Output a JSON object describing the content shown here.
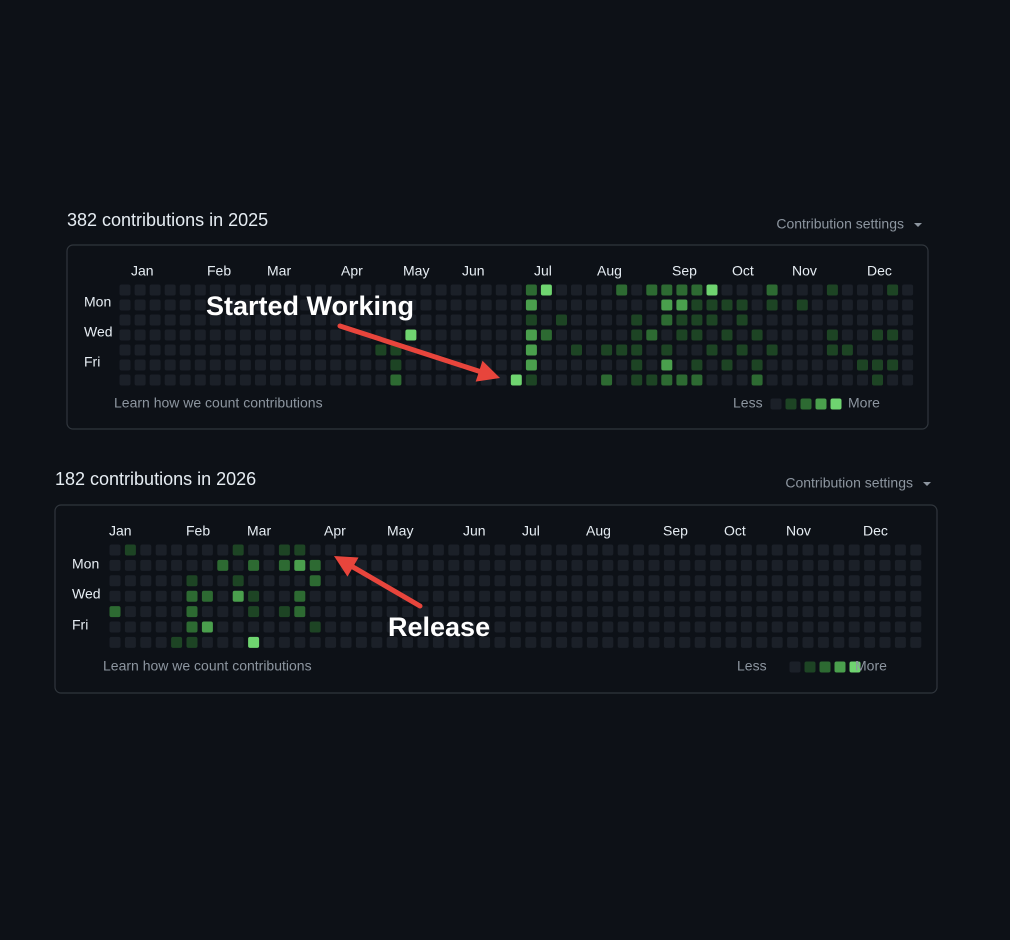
{
  "palette": [
    "#1b2028",
    "#1d4424",
    "#2d6a32",
    "#4a9f4d",
    "#6fd470"
  ],
  "panels": [
    {
      "title": "382 contributions in 2025",
      "settings": "Contribution settings",
      "months": [
        "Jan",
        "Feb",
        "Mar",
        "Apr",
        "May",
        "Jun",
        "Jul",
        "Aug",
        "Sep",
        "Oct",
        "Nov",
        "Dec"
      ],
      "days": [
        "Mon",
        "Wed",
        "Fri"
      ],
      "grid": [
        [
          0,
          0,
          0,
          0,
          0,
          0,
          0,
          0,
          0,
          0,
          0,
          0,
          0,
          0,
          0,
          0,
          0,
          0,
          0,
          0,
          0,
          0,
          0,
          0,
          0,
          0,
          0,
          2,
          4,
          0,
          0,
          0,
          0,
          2,
          0,
          2,
          2,
          2,
          2,
          4,
          0,
          0,
          0,
          2,
          0,
          0,
          0,
          1,
          0,
          0,
          0,
          1,
          0
        ],
        [
          0,
          0,
          0,
          0,
          0,
          0,
          0,
          0,
          0,
          0,
          0,
          0,
          0,
          0,
          0,
          0,
          0,
          0,
          0,
          0,
          0,
          0,
          0,
          0,
          0,
          0,
          0,
          3,
          0,
          0,
          0,
          0,
          0,
          0,
          0,
          0,
          3,
          3,
          1,
          1,
          1,
          1,
          0,
          1,
          0,
          1,
          0,
          0,
          0,
          0,
          0,
          0,
          0
        ],
        [
          0,
          0,
          0,
          0,
          0,
          0,
          0,
          0,
          0,
          0,
          0,
          0,
          0,
          0,
          0,
          0,
          0,
          0,
          0,
          0,
          0,
          0,
          0,
          0,
          0,
          0,
          0,
          1,
          0,
          1,
          0,
          0,
          0,
          0,
          1,
          0,
          2,
          1,
          1,
          1,
          0,
          1,
          0,
          0,
          0,
          0,
          0,
          0,
          0,
          0,
          0,
          0,
          0
        ],
        [
          0,
          0,
          0,
          0,
          0,
          0,
          0,
          0,
          0,
          0,
          0,
          0,
          0,
          0,
          0,
          0,
          0,
          0,
          0,
          4,
          0,
          0,
          0,
          0,
          0,
          0,
          0,
          3,
          2,
          0,
          0,
          0,
          0,
          0,
          1,
          2,
          0,
          1,
          1,
          0,
          1,
          0,
          1,
          0,
          0,
          0,
          0,
          1,
          0,
          0,
          1,
          1,
          0
        ],
        [
          0,
          0,
          0,
          0,
          0,
          0,
          0,
          0,
          0,
          0,
          0,
          0,
          0,
          0,
          0,
          0,
          0,
          1,
          1,
          0,
          0,
          0,
          0,
          0,
          0,
          0,
          0,
          3,
          0,
          0,
          1,
          0,
          1,
          1,
          1,
          0,
          1,
          0,
          0,
          1,
          0,
          1,
          0,
          1,
          0,
          0,
          0,
          1,
          1,
          0,
          0,
          0,
          0
        ],
        [
          0,
          0,
          0,
          0,
          0,
          0,
          0,
          0,
          0,
          0,
          0,
          0,
          0,
          0,
          0,
          0,
          0,
          0,
          1,
          0,
          0,
          0,
          0,
          0,
          0,
          0,
          0,
          3,
          0,
          0,
          0,
          0,
          0,
          0,
          1,
          0,
          3,
          0,
          1,
          0,
          1,
          0,
          1,
          0,
          0,
          0,
          0,
          0,
          0,
          1,
          1,
          1,
          0
        ],
        [
          0,
          0,
          0,
          0,
          0,
          0,
          0,
          0,
          0,
          0,
          0,
          0,
          0,
          0,
          0,
          0,
          0,
          0,
          2,
          0,
          0,
          0,
          0,
          0,
          0,
          0,
          4,
          1,
          0,
          0,
          0,
          0,
          2,
          0,
          1,
          1,
          2,
          2,
          2,
          0,
          0,
          0,
          2,
          0,
          0,
          0,
          0,
          0,
          0,
          0,
          1,
          0,
          0
        ]
      ],
      "footer": "Learn how we count contributions",
      "legend": {
        "less": "Less",
        "more": "More",
        "levels": [
          0,
          1,
          2,
          3,
          4
        ]
      }
    },
    {
      "title": "182 contributions in 2026",
      "settings": "Contribution settings",
      "months": [
        "Jan",
        "Feb",
        "Mar",
        "Apr",
        "May",
        "Jun",
        "Jul",
        "Aug",
        "Sep",
        "Oct",
        "Nov",
        "Dec"
      ],
      "days": [
        "Mon",
        "Wed",
        "Fri"
      ],
      "grid": [
        [
          0,
          1,
          0,
          0,
          0,
          0,
          0,
          0,
          1,
          0,
          0,
          1,
          1,
          0,
          0,
          0,
          0,
          0,
          0,
          0,
          0,
          0,
          0,
          0,
          0,
          0,
          0,
          0,
          0,
          0,
          0,
          0,
          0,
          0,
          0,
          0,
          0,
          0,
          0,
          0,
          0,
          0,
          0,
          0,
          0,
          0,
          0,
          0,
          0,
          0,
          0,
          0,
          0
        ],
        [
          0,
          0,
          0,
          0,
          0,
          0,
          0,
          2,
          0,
          2,
          0,
          2,
          3,
          2,
          0,
          0,
          0,
          0,
          0,
          0,
          0,
          0,
          0,
          0,
          0,
          0,
          0,
          0,
          0,
          0,
          0,
          0,
          0,
          0,
          0,
          0,
          0,
          0,
          0,
          0,
          0,
          0,
          0,
          0,
          0,
          0,
          0,
          0,
          0,
          0,
          0,
          0,
          0
        ],
        [
          0,
          0,
          0,
          0,
          0,
          1,
          0,
          0,
          1,
          0,
          0,
          0,
          0,
          2,
          0,
          0,
          0,
          0,
          0,
          0,
          0,
          0,
          0,
          0,
          0,
          0,
          0,
          0,
          0,
          0,
          0,
          0,
          0,
          0,
          0,
          0,
          0,
          0,
          0,
          0,
          0,
          0,
          0,
          0,
          0,
          0,
          0,
          0,
          0,
          0,
          0,
          0,
          0
        ],
        [
          0,
          0,
          0,
          0,
          0,
          2,
          2,
          0,
          3,
          1,
          0,
          0,
          2,
          0,
          0,
          0,
          0,
          0,
          0,
          0,
          0,
          0,
          0,
          0,
          0,
          0,
          0,
          0,
          0,
          0,
          0,
          0,
          0,
          0,
          0,
          0,
          0,
          0,
          0,
          0,
          0,
          0,
          0,
          0,
          0,
          0,
          0,
          0,
          0,
          0,
          0,
          0,
          0
        ],
        [
          2,
          0,
          0,
          0,
          0,
          2,
          0,
          0,
          0,
          1,
          0,
          1,
          2,
          0,
          0,
          0,
          0,
          0,
          0,
          0,
          0,
          0,
          0,
          0,
          0,
          0,
          0,
          0,
          0,
          0,
          0,
          0,
          0,
          0,
          0,
          0,
          0,
          0,
          0,
          0,
          0,
          0,
          0,
          0,
          0,
          0,
          0,
          0,
          0,
          0,
          0,
          0,
          0
        ],
        [
          0,
          0,
          0,
          0,
          0,
          2,
          3,
          0,
          0,
          0,
          0,
          0,
          0,
          1,
          0,
          0,
          0,
          0,
          0,
          0,
          0,
          0,
          0,
          0,
          0,
          0,
          0,
          0,
          0,
          0,
          0,
          0,
          0,
          0,
          0,
          0,
          0,
          0,
          0,
          0,
          0,
          0,
          0,
          0,
          0,
          0,
          0,
          0,
          0,
          0,
          0,
          0,
          0
        ],
        [
          0,
          0,
          0,
          0,
          1,
          1,
          0,
          0,
          0,
          4,
          0,
          0,
          0,
          0,
          0,
          0,
          0,
          0,
          0,
          0,
          0,
          0,
          0,
          0,
          0,
          0,
          0,
          0,
          0,
          0,
          0,
          0,
          0,
          0,
          0,
          0,
          0,
          0,
          0,
          0,
          0,
          0,
          0,
          0,
          0,
          0,
          0,
          0,
          0,
          0,
          0,
          0,
          0
        ]
      ],
      "footer": "Learn how we count contributions",
      "legend": {
        "less": "Less",
        "more": "More",
        "levels": [
          0,
          1,
          2,
          3,
          4
        ]
      }
    }
  ],
  "annotations": [
    "Started Working",
    "Release"
  ]
}
